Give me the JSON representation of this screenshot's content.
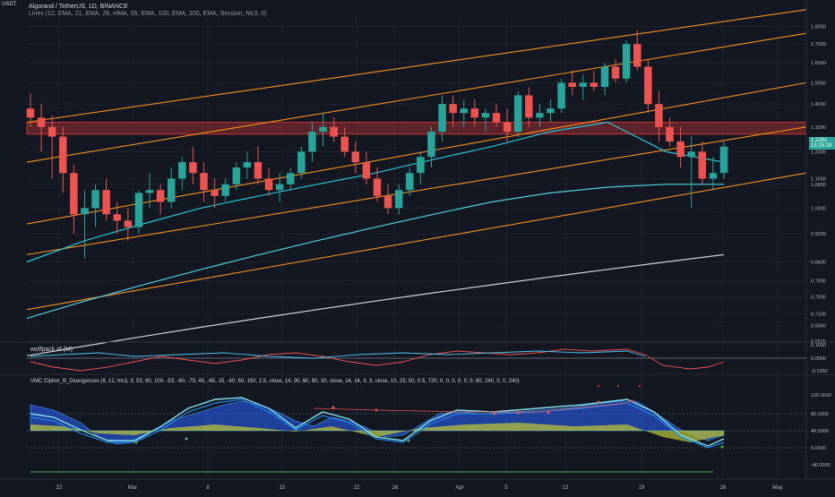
{
  "header": {
    "symbol_line": "Algorand / TetherUS, 1D, BINANCE",
    "indicators_line": "Lines (12, EMA, 21, EMA, 26, HMA, 55, EMA, 100, EMA, 200, EMA, Session, hlc3, 0)"
  },
  "currency": "USDT",
  "price_axis": {
    "ticks": [
      "1.8000",
      "1.7000",
      "1.6000",
      "1.5000",
      "1.4000",
      "1.3000",
      "1.2000",
      "1.1000",
      "1.0800",
      "1.0000",
      "0.9200",
      "0.8400",
      "0.7900",
      "0.7500",
      "0.7100",
      "0.6840",
      "0.6500"
    ],
    "current_price": "1.2262",
    "countdown": "13:25:28"
  },
  "panes": {
    "wolfpack": {
      "label": "wolfpack id (M)",
      "ticks": [
        "0.1000",
        "0.0000",
        "-0.1000"
      ]
    },
    "vmc": {
      "label": "VMC Cipher_B_Divergences (9, 12, hlc3, 3, 53, 60, 100, -53, -60, -75, 45, -65, 15, -40, 60, 150, 2.5, close, 14, 30, 60, 80, 30, close, 14, 14, 3, 3, close, 10, 23, 50, 0.5, 720, 0, 0, 0, 0, 0, 0, 60, 240, 0, 0, 240)",
      "ticks": [
        "120.0000",
        "80.0000",
        "40.0000",
        "0.0000",
        "-40.0000",
        "-80.0000"
      ]
    }
  },
  "time_axis": [
    "22",
    "Mar",
    "8",
    "15",
    "22",
    "26",
    "Apr",
    "5",
    "12",
    "19",
    "26",
    "May"
  ],
  "colors": {
    "bg": "#131722",
    "up": "#26a69a",
    "down": "#ef5350",
    "channel": "#f7931a",
    "zone": "#e53935"
  },
  "chart_data": {
    "type": "candlestick",
    "title": "Algorand / TetherUS, 1D, BINANCE",
    "ylabel": "USDT",
    "ylim": [
      0.65,
      1.85
    ],
    "candles": [
      [
        1.38,
        1.45,
        1.3,
        1.34
      ],
      [
        1.34,
        1.4,
        1.2,
        1.3
      ],
      [
        1.3,
        1.35,
        1.1,
        1.26
      ],
      [
        1.26,
        1.3,
        1.05,
        1.12
      ],
      [
        1.12,
        1.15,
        0.92,
        0.98
      ],
      [
        0.98,
        1.06,
        0.85,
        1.0
      ],
      [
        1.0,
        1.08,
        0.94,
        1.06
      ],
      [
        1.06,
        1.1,
        0.96,
        0.98
      ],
      [
        0.98,
        1.02,
        0.92,
        0.96
      ],
      [
        0.96,
        1.0,
        0.9,
        0.94
      ],
      [
        0.94,
        1.06,
        0.92,
        1.05
      ],
      [
        1.05,
        1.12,
        1.0,
        1.06
      ],
      [
        1.06,
        1.08,
        0.98,
        1.02
      ],
      [
        1.02,
        1.14,
        1.0,
        1.1
      ],
      [
        1.1,
        1.18,
        1.06,
        1.16
      ],
      [
        1.16,
        1.22,
        1.08,
        1.12
      ],
      [
        1.12,
        1.16,
        1.02,
        1.06
      ],
      [
        1.06,
        1.1,
        1.0,
        1.04
      ],
      [
        1.04,
        1.1,
        1.02,
        1.08
      ],
      [
        1.08,
        1.16,
        1.06,
        1.14
      ],
      [
        1.14,
        1.2,
        1.1,
        1.16
      ],
      [
        1.16,
        1.22,
        1.08,
        1.1
      ],
      [
        1.1,
        1.14,
        1.04,
        1.06
      ],
      [
        1.06,
        1.12,
        1.02,
        1.08
      ],
      [
        1.08,
        1.14,
        1.06,
        1.12
      ],
      [
        1.12,
        1.22,
        1.1,
        1.2
      ],
      [
        1.2,
        1.32,
        1.16,
        1.28
      ],
      [
        1.28,
        1.36,
        1.22,
        1.3
      ],
      [
        1.3,
        1.34,
        1.24,
        1.26
      ],
      [
        1.26,
        1.3,
        1.18,
        1.2
      ],
      [
        1.2,
        1.24,
        1.12,
        1.16
      ],
      [
        1.16,
        1.2,
        1.08,
        1.1
      ],
      [
        1.1,
        1.14,
        1.02,
        1.04
      ],
      [
        1.04,
        1.08,
        0.98,
        1.0
      ],
      [
        1.0,
        1.08,
        0.98,
        1.06
      ],
      [
        1.06,
        1.14,
        1.04,
        1.12
      ],
      [
        1.12,
        1.2,
        1.08,
        1.18
      ],
      [
        1.18,
        1.3,
        1.14,
        1.28
      ],
      [
        1.28,
        1.44,
        1.24,
        1.4
      ],
      [
        1.4,
        1.44,
        1.3,
        1.36
      ],
      [
        1.36,
        1.42,
        1.3,
        1.38
      ],
      [
        1.38,
        1.42,
        1.3,
        1.34
      ],
      [
        1.34,
        1.38,
        1.28,
        1.36
      ],
      [
        1.36,
        1.4,
        1.3,
        1.32
      ],
      [
        1.32,
        1.38,
        1.24,
        1.28
      ],
      [
        1.28,
        1.46,
        1.26,
        1.44
      ],
      [
        1.44,
        1.48,
        1.3,
        1.34
      ],
      [
        1.34,
        1.4,
        1.3,
        1.36
      ],
      [
        1.36,
        1.42,
        1.32,
        1.38
      ],
      [
        1.38,
        1.52,
        1.36,
        1.5
      ],
      [
        1.5,
        1.56,
        1.44,
        1.48
      ],
      [
        1.48,
        1.54,
        1.42,
        1.5
      ],
      [
        1.5,
        1.56,
        1.46,
        1.48
      ],
      [
        1.48,
        1.6,
        1.44,
        1.58
      ],
      [
        1.58,
        1.62,
        1.5,
        1.52
      ],
      [
        1.52,
        1.72,
        1.5,
        1.7
      ],
      [
        1.7,
        1.78,
        1.56,
        1.58
      ],
      [
        1.58,
        1.62,
        1.36,
        1.4
      ],
      [
        1.4,
        1.46,
        1.24,
        1.3
      ],
      [
        1.3,
        1.34,
        1.22,
        1.24
      ],
      [
        1.24,
        1.3,
        1.14,
        1.18
      ],
      [
        1.18,
        1.26,
        1.0,
        1.2
      ],
      [
        1.2,
        1.24,
        1.08,
        1.1
      ],
      [
        1.1,
        1.18,
        1.06,
        1.12
      ],
      [
        1.12,
        1.24,
        1.1,
        1.22
      ]
    ],
    "channel_lines": [
      {
        "name": "channel-1",
        "from": 1.32,
        "to": 1.9
      },
      {
        "name": "channel-2",
        "from": 1.16,
        "to": 1.76
      },
      {
        "name": "channel-3",
        "from": 0.95,
        "to": 1.5
      },
      {
        "name": "channel-4",
        "from": 0.86,
        "to": 1.3
      },
      {
        "name": "channel-5",
        "from": 0.72,
        "to": 1.12
      }
    ],
    "resistance_zone": [
      1.27,
      1.32
    ],
    "moving_averages": [
      {
        "name": "ema-fast",
        "color": "#26c6da",
        "values": [
          0.84,
          0.9,
          0.95,
          1.0,
          1.04,
          1.08,
          1.12,
          1.17,
          1.22,
          1.28,
          1.32,
          1.2,
          1.16
        ]
      },
      {
        "name": "ema-mid",
        "color": "#4dd0e1",
        "values": [
          0.7,
          0.74,
          0.78,
          0.82,
          0.86,
          0.9,
          0.94,
          0.98,
          1.02,
          1.05,
          1.07,
          1.08,
          1.08
        ]
      },
      {
        "name": "ema-200",
        "color": "#d1d4dc",
        "values": [
          0.62,
          0.64,
          0.66,
          0.68,
          0.7,
          0.72,
          0.74,
          0.76,
          0.78,
          0.8,
          0.82,
          0.84,
          0.86
        ]
      }
    ]
  }
}
